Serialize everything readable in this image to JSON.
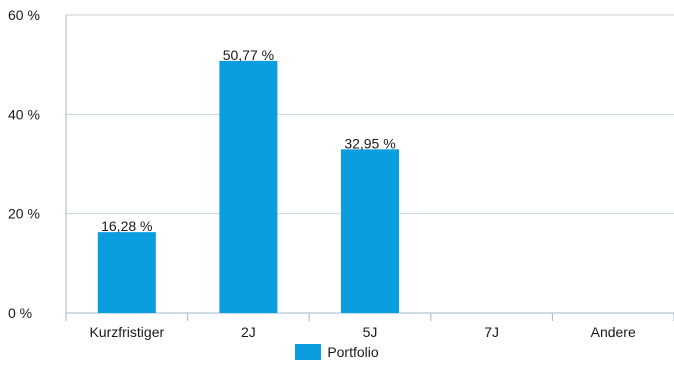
{
  "chart_data": {
    "type": "bar",
    "categories": [
      "Kurzfristiger",
      "2J",
      "5J",
      "7J",
      "Andere"
    ],
    "series": [
      {
        "name": "Portfolio",
        "values": [
          16.28,
          50.77,
          32.95,
          null,
          null
        ],
        "labels": [
          "16,28 %",
          "50,77 %",
          "32,95 %",
          "",
          ""
        ]
      }
    ],
    "ylim": [
      0,
      60
    ],
    "yticks": [
      0,
      20,
      40,
      60
    ],
    "ytick_labels": [
      "0 %",
      "20 %",
      "40 %",
      "60 %"
    ],
    "grid": true,
    "legend": "bottom-center",
    "colors": {
      "bar": "#0a9ee0",
      "grid": "#c5d6e2",
      "axis": "#9fb8c8",
      "text": "#1a1a1a"
    }
  }
}
